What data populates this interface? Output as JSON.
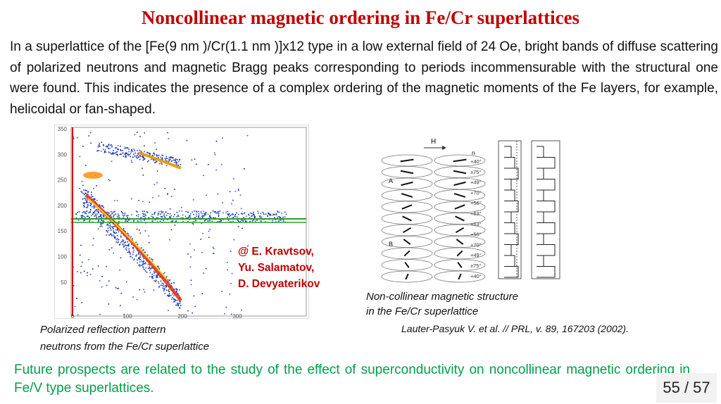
{
  "title": "Noncollinear magnetic ordering in Fe/Cr superlattices",
  "intro": "In a superlattice of the [Fe(9 nm )/Cr(1.1 nm )]x12 type in a low external field of 24 Oe, bright bands of diffuse scattering of polarized neutrons and magnetic Bragg peaks corresponding to periods incommensurable with the structural one were found. This indicates the presence of a complex ordering of the magnetic moments of the Fe layers, for example, helicoidal or fan-shaped.",
  "left_figure": {
    "yticks": [
      "350",
      "300",
      "250",
      "200",
      "150",
      "100",
      "50"
    ],
    "xticks": [
      "0",
      "100",
      "200",
      "300"
    ],
    "credit": [
      "@ E. Kravtsov,",
      "Yu. Salamatov,",
      "D. Devyaterikov"
    ],
    "caption": [
      "Polarized reflection pattern",
      "neutrons from the Fe/Cr superlattice"
    ]
  },
  "right_figure": {
    "field": "H",
    "labels": [
      "A",
      "B"
    ],
    "column": "n",
    "angles": [
      "+40°",
      "±75°",
      "+49°",
      "+70°",
      "+56°",
      "+63°",
      "+63°",
      "+56°",
      "+70°",
      "+49°",
      "±75°",
      "+40°"
    ],
    "caption": [
      "Non-collinear magnetic structure",
      "in the Fe/Cr superlattice"
    ],
    "reference": "Lauter-Pasyuk V. et al. // PRL, v. 89, 167203 (2002)."
  },
  "outlook": "Future prospects are related to the study of the effect of superconductivity on noncollinear magnetic ordering in Fe/V type superlattices.",
  "page": "55 / 57"
}
